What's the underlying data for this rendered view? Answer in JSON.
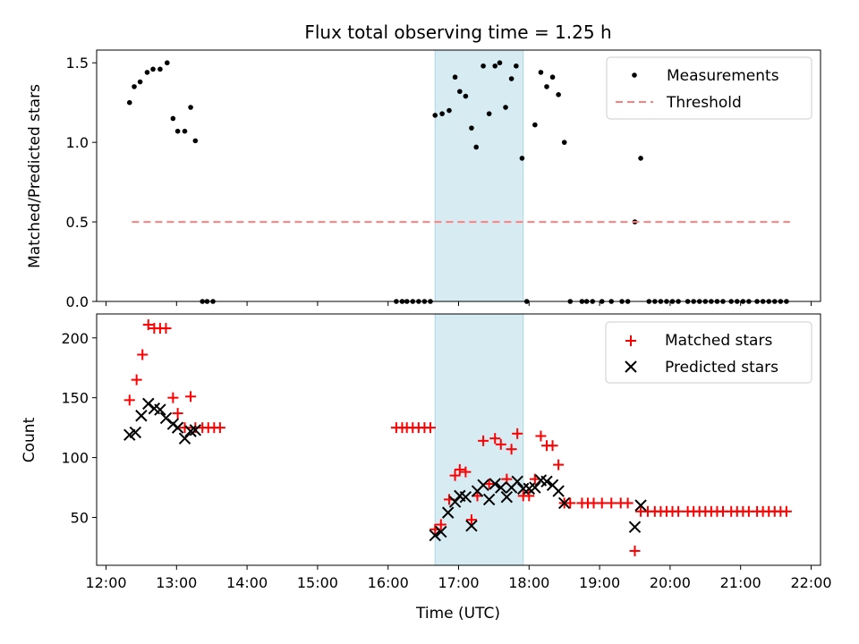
{
  "chart_data": [
    {
      "type": "scatter",
      "title": "Flux total observing time = 1.25 h",
      "xlabel": "",
      "ylabel": "Matched/Predicted stars",
      "xlim": [
        "11:52",
        "22:08"
      ],
      "ylim": [
        0,
        1.58
      ],
      "yticks": [
        "0.0",
        "0.5",
        "1.0",
        "1.5"
      ],
      "xticks": [
        "12:00",
        "13:00",
        "14:00",
        "15:00",
        "16:00",
        "17:00",
        "18:00",
        "19:00",
        "20:00",
        "21:00",
        "22:00"
      ],
      "highlight_span": [
        "16:40",
        "17:55"
      ],
      "legend_position": "top-right",
      "series": [
        {
          "name": "Measurements",
          "marker": "dot",
          "color": "#000000",
          "points": [
            [
              "12:20",
              1.25
            ],
            [
              "12:24",
              1.35
            ],
            [
              "12:29",
              1.38
            ],
            [
              "12:35",
              1.44
            ],
            [
              "12:40",
              1.46
            ],
            [
              "12:46",
              1.46
            ],
            [
              "12:52",
              1.5
            ],
            [
              "12:57",
              1.15
            ],
            [
              "13:01",
              1.07
            ],
            [
              "13:07",
              1.07
            ],
            [
              "13:12",
              1.22
            ],
            [
              "13:16",
              1.01
            ],
            [
              "13:22",
              0
            ],
            [
              "13:26",
              0
            ],
            [
              "13:31",
              0
            ],
            [
              "16:07",
              0
            ],
            [
              "16:12",
              0
            ],
            [
              "16:16",
              0
            ],
            [
              "16:21",
              0
            ],
            [
              "16:26",
              0
            ],
            [
              "16:31",
              0
            ],
            [
              "16:36",
              0
            ],
            [
              "16:40",
              1.17
            ],
            [
              "16:46",
              1.18
            ],
            [
              "16:52",
              1.2
            ],
            [
              "16:57",
              1.41
            ],
            [
              "17:01",
              1.32
            ],
            [
              "17:06",
              1.29
            ],
            [
              "17:11",
              1.09
            ],
            [
              "17:15",
              0.97
            ],
            [
              "17:21",
              1.48
            ],
            [
              "17:26",
              1.18
            ],
            [
              "17:31",
              1.48
            ],
            [
              "17:35",
              1.5
            ],
            [
              "17:40",
              1.22
            ],
            [
              "17:45",
              1.4
            ],
            [
              "17:49",
              1.48
            ],
            [
              "17:54",
              0.9
            ],
            [
              "17:58",
              0
            ],
            [
              "18:05",
              1.11
            ],
            [
              "18:10",
              1.44
            ],
            [
              "18:15",
              1.35
            ],
            [
              "18:20",
              1.41
            ],
            [
              "18:25",
              1.3
            ],
            [
              "18:30",
              1.0
            ],
            [
              "18:35",
              0
            ],
            [
              "18:45",
              0
            ],
            [
              "18:49",
              0
            ],
            [
              "18:54",
              0
            ],
            [
              "19:02",
              0
            ],
            [
              "19:10",
              0
            ],
            [
              "19:19",
              0
            ],
            [
              "19:24",
              0
            ],
            [
              "19:30",
              0.5
            ],
            [
              "19:35",
              0.9
            ],
            [
              "19:42",
              0
            ],
            [
              "19:47",
              0
            ],
            [
              "19:52",
              0
            ],
            [
              "19:57",
              0
            ],
            [
              "20:02",
              0
            ],
            [
              "20:07",
              0
            ],
            [
              "20:15",
              0
            ],
            [
              "20:20",
              0
            ],
            [
              "20:25",
              0
            ],
            [
              "20:30",
              0
            ],
            [
              "20:35",
              0
            ],
            [
              "20:40",
              0
            ],
            [
              "20:45",
              0
            ],
            [
              "20:52",
              0
            ],
            [
              "20:57",
              0
            ],
            [
              "21:02",
              0
            ],
            [
              "21:07",
              0
            ],
            [
              "21:14",
              0
            ],
            [
              "21:19",
              0
            ],
            [
              "21:24",
              0
            ],
            [
              "21:29",
              0
            ],
            [
              "21:34",
              0
            ],
            [
              "21:39",
              0
            ]
          ]
        },
        {
          "name": "Threshold",
          "line_style": "dashed",
          "color": "#ff7f7f",
          "points": [
            [
              "12:22",
              0.5
            ],
            [
              "21:42",
              0.5
            ]
          ]
        }
      ]
    },
    {
      "type": "scatter",
      "title": "",
      "xlabel": "Time (UTC)",
      "ylabel": "Count",
      "xlim": [
        "11:52",
        "22:08"
      ],
      "ylim": [
        10,
        220
      ],
      "yticks": [
        "50",
        "100",
        "150",
        "200"
      ],
      "xticks": [
        "12:00",
        "13:00",
        "14:00",
        "15:00",
        "16:00",
        "17:00",
        "18:00",
        "19:00",
        "20:00",
        "21:00",
        "22:00"
      ],
      "highlight_span": [
        "16:40",
        "17:55"
      ],
      "legend_position": "top-right",
      "series": [
        {
          "name": "Matched stars",
          "marker": "plus",
          "color": "#ff0000",
          "points": [
            [
              "12:20",
              148
            ],
            [
              "12:26",
              165
            ],
            [
              "12:31",
              186
            ],
            [
              "12:36",
              211
            ],
            [
              "12:41",
              208
            ],
            [
              "12:46",
              208
            ],
            [
              "12:51",
              208
            ],
            [
              "12:57",
              150
            ],
            [
              "13:01",
              137
            ],
            [
              "13:07",
              125
            ],
            [
              "13:12",
              151
            ],
            [
              "13:16",
              125
            ],
            [
              "13:22",
              125
            ],
            [
              "13:27",
              125
            ],
            [
              "13:32",
              125
            ],
            [
              "13:37",
              125
            ],
            [
              "16:07",
              125
            ],
            [
              "16:12",
              125
            ],
            [
              "16:16",
              125
            ],
            [
              "16:21",
              125
            ],
            [
              "16:26",
              125
            ],
            [
              "16:31",
              125
            ],
            [
              "16:36",
              125
            ],
            [
              "16:40",
              40
            ],
            [
              "16:45",
              44
            ],
            [
              "16:52",
              65
            ],
            [
              "16:57",
              85
            ],
            [
              "17:01",
              90
            ],
            [
              "17:06",
              88
            ],
            [
              "17:11",
              48
            ],
            [
              "17:16",
              68
            ],
            [
              "17:21",
              114
            ],
            [
              "17:26",
              78
            ],
            [
              "17:31",
              116
            ],
            [
              "17:36",
              111
            ],
            [
              "17:41",
              82
            ],
            [
              "17:45",
              107
            ],
            [
              "17:50",
              120
            ],
            [
              "17:55",
              68
            ],
            [
              "18:00",
              68
            ],
            [
              "18:05",
              82
            ],
            [
              "18:10",
              118
            ],
            [
              "18:15",
              110
            ],
            [
              "18:20",
              110
            ],
            [
              "18:25",
              94
            ],
            [
              "18:30",
              62
            ],
            [
              "18:35",
              62
            ],
            [
              "18:45",
              62
            ],
            [
              "18:50",
              62
            ],
            [
              "18:55",
              62
            ],
            [
              "19:02",
              62
            ],
            [
              "19:10",
              62
            ],
            [
              "19:18",
              62
            ],
            [
              "19:24",
              62
            ],
            [
              "19:30",
              22
            ],
            [
              "19:35",
              55
            ],
            [
              "19:41",
              55
            ],
            [
              "19:47",
              55
            ],
            [
              "19:52",
              55
            ],
            [
              "19:57",
              55
            ],
            [
              "20:02",
              55
            ],
            [
              "20:07",
              55
            ],
            [
              "20:15",
              55
            ],
            [
              "20:20",
              55
            ],
            [
              "20:25",
              55
            ],
            [
              "20:30",
              55
            ],
            [
              "20:35",
              55
            ],
            [
              "20:40",
              55
            ],
            [
              "20:45",
              55
            ],
            [
              "20:52",
              55
            ],
            [
              "20:57",
              55
            ],
            [
              "21:02",
              55
            ],
            [
              "21:07",
              55
            ],
            [
              "21:14",
              55
            ],
            [
              "21:19",
              55
            ],
            [
              "21:24",
              55
            ],
            [
              "21:29",
              55
            ],
            [
              "21:34",
              55
            ],
            [
              "21:39",
              55
            ]
          ]
        },
        {
          "name": "Predicted stars",
          "marker": "x",
          "color": "#000000",
          "points": [
            [
              "12:20",
              119
            ],
            [
              "12:25",
              121
            ],
            [
              "12:30",
              135
            ],
            [
              "12:36",
              145
            ],
            [
              "12:41",
              141
            ],
            [
              "12:46",
              140
            ],
            [
              "12:51",
              133
            ],
            [
              "12:57",
              128
            ],
            [
              "13:01",
              125
            ],
            [
              "13:07",
              116
            ],
            [
              "13:12",
              122
            ],
            [
              "13:16",
              123
            ],
            [
              "16:40",
              35
            ],
            [
              "16:45",
              38
            ],
            [
              "16:51",
              54
            ],
            [
              "16:57",
              63
            ],
            [
              "17:01",
              68
            ],
            [
              "17:06",
              67
            ],
            [
              "17:11",
              43
            ],
            [
              "17:16",
              72
            ],
            [
              "17:21",
              77
            ],
            [
              "17:26",
              65
            ],
            [
              "17:31",
              78
            ],
            [
              "17:36",
              75
            ],
            [
              "17:41",
              67
            ],
            [
              "17:45",
              75
            ],
            [
              "17:50",
              80
            ],
            [
              "17:55",
              74
            ],
            [
              "18:00",
              74
            ],
            [
              "18:05",
              75
            ],
            [
              "18:10",
              81
            ],
            [
              "18:15",
              80
            ],
            [
              "18:20",
              77
            ],
            [
              "18:25",
              72
            ],
            [
              "18:30",
              62
            ],
            [
              "19:30",
              42
            ],
            [
              "19:35",
              60
            ]
          ]
        }
      ]
    }
  ]
}
